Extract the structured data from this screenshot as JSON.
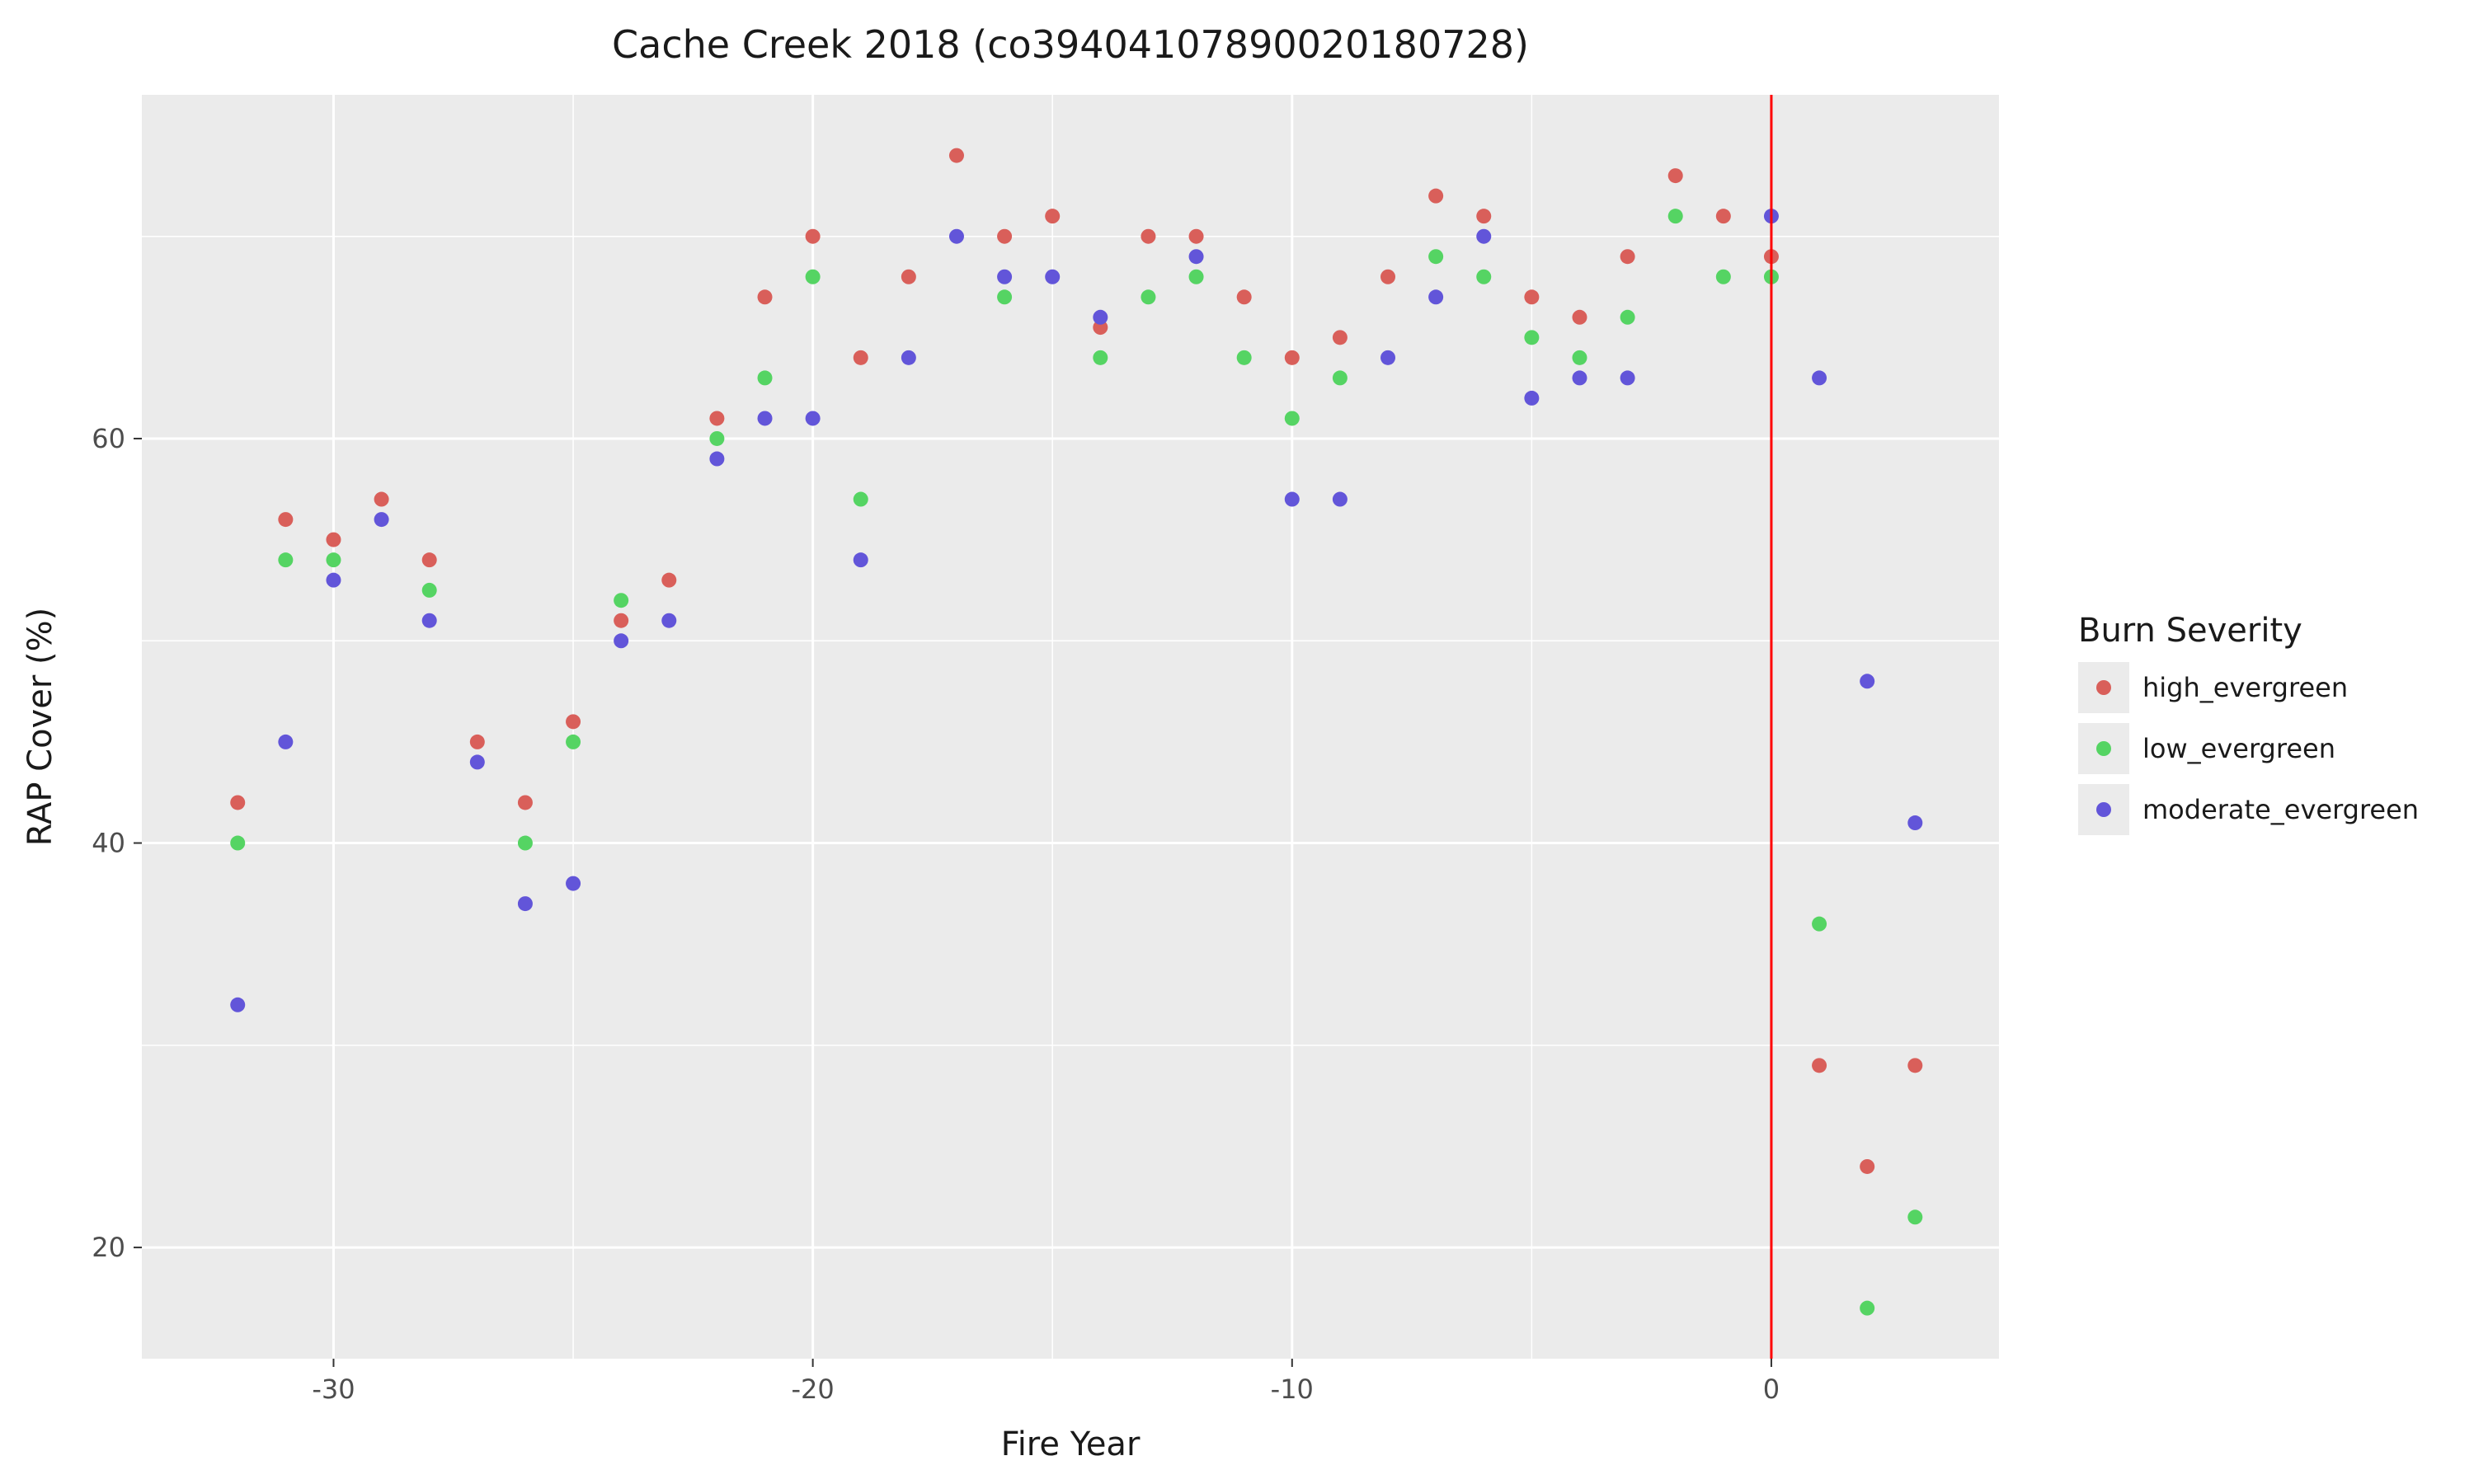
{
  "chart_data": {
    "type": "scatter",
    "title": "Cache Creek 2018 (co39404107890020180728)",
    "xlabel": "Fire Year",
    "ylabel": "RAP Cover (%)",
    "xlim": [
      -34,
      4.75
    ],
    "ylim": [
      14.5,
      77
    ],
    "xticks": [
      -30,
      -20,
      -10,
      0
    ],
    "yticks": [
      20,
      40,
      60
    ],
    "grid": true,
    "vline": {
      "x": 0,
      "color": "#ff0000"
    },
    "legend": {
      "title": "Burn Severity",
      "position": "right"
    },
    "series": [
      {
        "name": "high_evergreen",
        "color": "#d95f5a",
        "points": [
          [
            -32,
            42
          ],
          [
            -31,
            56
          ],
          [
            -30,
            55
          ],
          [
            -29,
            57
          ],
          [
            -28,
            54
          ],
          [
            -27,
            45
          ],
          [
            -26,
            42
          ],
          [
            -25,
            46
          ],
          [
            -24,
            51
          ],
          [
            -23,
            53
          ],
          [
            -22,
            61
          ],
          [
            -21,
            67
          ],
          [
            -20,
            70
          ],
          [
            -19,
            64
          ],
          [
            -18,
            68
          ],
          [
            -17,
            74
          ],
          [
            -16,
            70
          ],
          [
            -15,
            71
          ],
          [
            -14,
            65.5
          ],
          [
            -13,
            70
          ],
          [
            -12,
            70
          ],
          [
            -11,
            67
          ],
          [
            -10,
            64
          ],
          [
            -9,
            65
          ],
          [
            -8,
            68
          ],
          [
            -7,
            72
          ],
          [
            -6,
            71
          ],
          [
            -5,
            67
          ],
          [
            -4,
            66
          ],
          [
            -3,
            69
          ],
          [
            -2,
            73
          ],
          [
            -1,
            71
          ],
          [
            0,
            69
          ],
          [
            1,
            29
          ],
          [
            2,
            24
          ],
          [
            3,
            29
          ]
        ]
      },
      {
        "name": "low_evergreen",
        "color": "#55d463",
        "points": [
          [
            -32,
            40
          ],
          [
            -31,
            54
          ],
          [
            -30,
            54
          ],
          [
            -28,
            52.5
          ],
          [
            -26,
            40
          ],
          [
            -25,
            45
          ],
          [
            -24,
            52
          ],
          [
            -22,
            60
          ],
          [
            -21,
            63
          ],
          [
            -20,
            68
          ],
          [
            -19,
            57
          ],
          [
            -16,
            67
          ],
          [
            -14,
            64
          ],
          [
            -13,
            67
          ],
          [
            -12,
            68
          ],
          [
            -11,
            64
          ],
          [
            -10,
            61
          ],
          [
            -9,
            63
          ],
          [
            -7,
            69
          ],
          [
            -6,
            68
          ],
          [
            -5,
            65
          ],
          [
            -4,
            64
          ],
          [
            -3,
            66
          ],
          [
            -2,
            71
          ],
          [
            -1,
            68
          ],
          [
            0,
            68
          ],
          [
            1,
            36
          ],
          [
            2,
            17
          ],
          [
            3,
            21.5
          ]
        ]
      },
      {
        "name": "moderate_evergreen",
        "color": "#6255d9",
        "points": [
          [
            -32,
            32
          ],
          [
            -31,
            45
          ],
          [
            -30,
            53
          ],
          [
            -29,
            56
          ],
          [
            -28,
            51
          ],
          [
            -27,
            44
          ],
          [
            -26,
            37
          ],
          [
            -25,
            38
          ],
          [
            -24,
            50
          ],
          [
            -23,
            51
          ],
          [
            -22,
            59
          ],
          [
            -21,
            61
          ],
          [
            -20,
            61
          ],
          [
            -19,
            54
          ],
          [
            -18,
            64
          ],
          [
            -17,
            70
          ],
          [
            -16,
            68
          ],
          [
            -15,
            68
          ],
          [
            -14,
            66
          ],
          [
            -12,
            69
          ],
          [
            -10,
            57
          ],
          [
            -9,
            57
          ],
          [
            -8,
            64
          ],
          [
            -7,
            67
          ],
          [
            -6,
            70
          ],
          [
            -5,
            62
          ],
          [
            -4,
            63
          ],
          [
            -3,
            63
          ],
          [
            0,
            71
          ],
          [
            1,
            63
          ],
          [
            2,
            48
          ],
          [
            3,
            41
          ]
        ]
      }
    ]
  }
}
